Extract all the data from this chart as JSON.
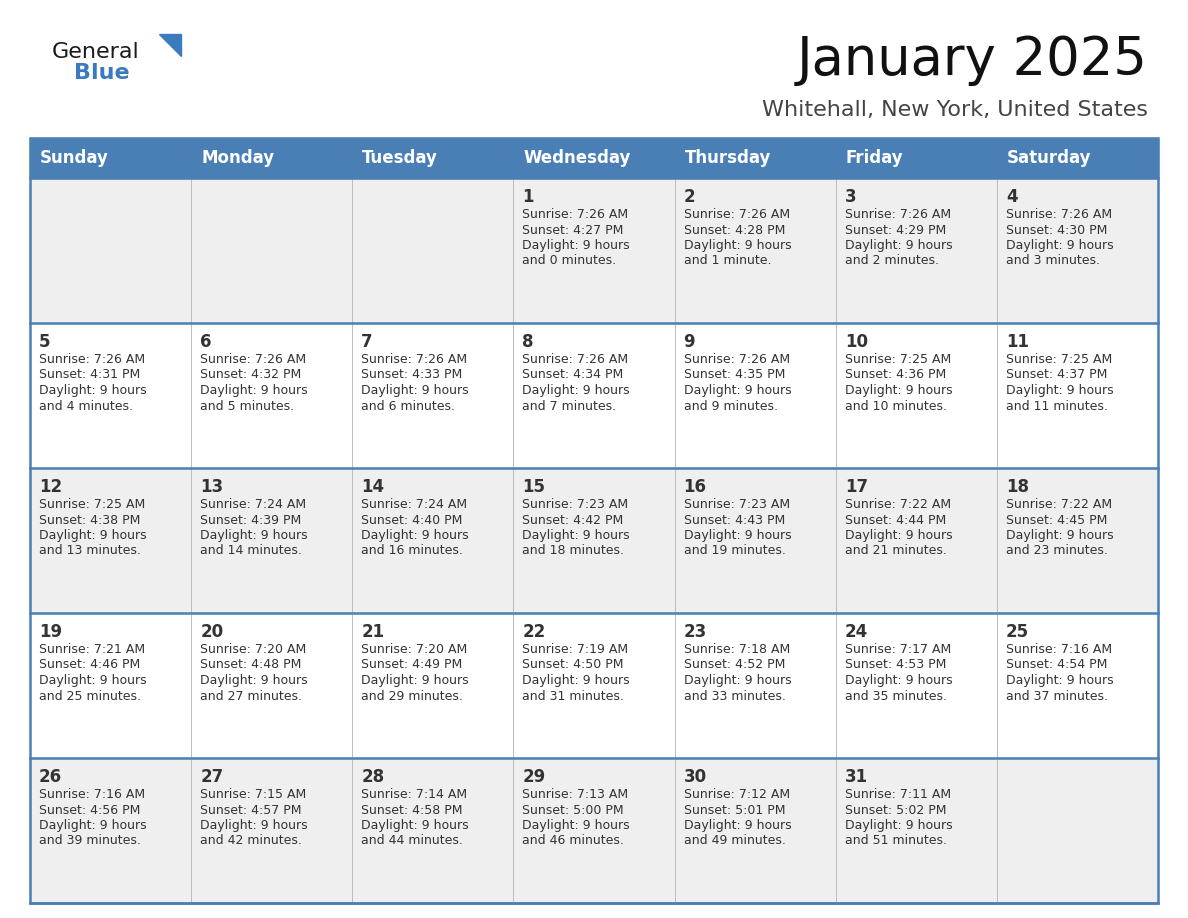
{
  "title": "January 2025",
  "subtitle": "Whitehall, New York, United States",
  "header_bg_color": "#4A7FB5",
  "header_text_color": "#FFFFFF",
  "day_names": [
    "Sunday",
    "Monday",
    "Tuesday",
    "Wednesday",
    "Thursday",
    "Friday",
    "Saturday"
  ],
  "row_colors": [
    "#EFEFEF",
    "#FFFFFF",
    "#EFEFEF",
    "#FFFFFF",
    "#EFEFEF"
  ],
  "border_color": "#4A7FB5",
  "cell_border_color": "#4A7FB5",
  "text_color": "#333333",
  "general_color": "#1a1a1a",
  "blue_color": "#3a7bbf",
  "calendar": [
    [
      null,
      null,
      null,
      {
        "day": 1,
        "sunrise": "7:26 AM",
        "sunset": "4:27 PM",
        "daylight_h": "9 hours",
        "daylight_m": "0 minutes"
      },
      {
        "day": 2,
        "sunrise": "7:26 AM",
        "sunset": "4:28 PM",
        "daylight_h": "9 hours",
        "daylight_m": "1 minute"
      },
      {
        "day": 3,
        "sunrise": "7:26 AM",
        "sunset": "4:29 PM",
        "daylight_h": "9 hours",
        "daylight_m": "2 minutes"
      },
      {
        "day": 4,
        "sunrise": "7:26 AM",
        "sunset": "4:30 PM",
        "daylight_h": "9 hours",
        "daylight_m": "3 minutes"
      }
    ],
    [
      {
        "day": 5,
        "sunrise": "7:26 AM",
        "sunset": "4:31 PM",
        "daylight_h": "9 hours",
        "daylight_m": "4 minutes"
      },
      {
        "day": 6,
        "sunrise": "7:26 AM",
        "sunset": "4:32 PM",
        "daylight_h": "9 hours",
        "daylight_m": "5 minutes"
      },
      {
        "day": 7,
        "sunrise": "7:26 AM",
        "sunset": "4:33 PM",
        "daylight_h": "9 hours",
        "daylight_m": "6 minutes"
      },
      {
        "day": 8,
        "sunrise": "7:26 AM",
        "sunset": "4:34 PM",
        "daylight_h": "9 hours",
        "daylight_m": "7 minutes"
      },
      {
        "day": 9,
        "sunrise": "7:26 AM",
        "sunset": "4:35 PM",
        "daylight_h": "9 hours",
        "daylight_m": "9 minutes"
      },
      {
        "day": 10,
        "sunrise": "7:25 AM",
        "sunset": "4:36 PM",
        "daylight_h": "9 hours",
        "daylight_m": "10 minutes"
      },
      {
        "day": 11,
        "sunrise": "7:25 AM",
        "sunset": "4:37 PM",
        "daylight_h": "9 hours",
        "daylight_m": "11 minutes"
      }
    ],
    [
      {
        "day": 12,
        "sunrise": "7:25 AM",
        "sunset": "4:38 PM",
        "daylight_h": "9 hours",
        "daylight_m": "13 minutes"
      },
      {
        "day": 13,
        "sunrise": "7:24 AM",
        "sunset": "4:39 PM",
        "daylight_h": "9 hours",
        "daylight_m": "14 minutes"
      },
      {
        "day": 14,
        "sunrise": "7:24 AM",
        "sunset": "4:40 PM",
        "daylight_h": "9 hours",
        "daylight_m": "16 minutes"
      },
      {
        "day": 15,
        "sunrise": "7:23 AM",
        "sunset": "4:42 PM",
        "daylight_h": "9 hours",
        "daylight_m": "18 minutes"
      },
      {
        "day": 16,
        "sunrise": "7:23 AM",
        "sunset": "4:43 PM",
        "daylight_h": "9 hours",
        "daylight_m": "19 minutes"
      },
      {
        "day": 17,
        "sunrise": "7:22 AM",
        "sunset": "4:44 PM",
        "daylight_h": "9 hours",
        "daylight_m": "21 minutes"
      },
      {
        "day": 18,
        "sunrise": "7:22 AM",
        "sunset": "4:45 PM",
        "daylight_h": "9 hours",
        "daylight_m": "23 minutes"
      }
    ],
    [
      {
        "day": 19,
        "sunrise": "7:21 AM",
        "sunset": "4:46 PM",
        "daylight_h": "9 hours",
        "daylight_m": "25 minutes"
      },
      {
        "day": 20,
        "sunrise": "7:20 AM",
        "sunset": "4:48 PM",
        "daylight_h": "9 hours",
        "daylight_m": "27 minutes"
      },
      {
        "day": 21,
        "sunrise": "7:20 AM",
        "sunset": "4:49 PM",
        "daylight_h": "9 hours",
        "daylight_m": "29 minutes"
      },
      {
        "day": 22,
        "sunrise": "7:19 AM",
        "sunset": "4:50 PM",
        "daylight_h": "9 hours",
        "daylight_m": "31 minutes"
      },
      {
        "day": 23,
        "sunrise": "7:18 AM",
        "sunset": "4:52 PM",
        "daylight_h": "9 hours",
        "daylight_m": "33 minutes"
      },
      {
        "day": 24,
        "sunrise": "7:17 AM",
        "sunset": "4:53 PM",
        "daylight_h": "9 hours",
        "daylight_m": "35 minutes"
      },
      {
        "day": 25,
        "sunrise": "7:16 AM",
        "sunset": "4:54 PM",
        "daylight_h": "9 hours",
        "daylight_m": "37 minutes"
      }
    ],
    [
      {
        "day": 26,
        "sunrise": "7:16 AM",
        "sunset": "4:56 PM",
        "daylight_h": "9 hours",
        "daylight_m": "39 minutes"
      },
      {
        "day": 27,
        "sunrise": "7:15 AM",
        "sunset": "4:57 PM",
        "daylight_h": "9 hours",
        "daylight_m": "42 minutes"
      },
      {
        "day": 28,
        "sunrise": "7:14 AM",
        "sunset": "4:58 PM",
        "daylight_h": "9 hours",
        "daylight_m": "44 minutes"
      },
      {
        "day": 29,
        "sunrise": "7:13 AM",
        "sunset": "5:00 PM",
        "daylight_h": "9 hours",
        "daylight_m": "46 minutes"
      },
      {
        "day": 30,
        "sunrise": "7:12 AM",
        "sunset": "5:01 PM",
        "daylight_h": "9 hours",
        "daylight_m": "49 minutes"
      },
      {
        "day": 31,
        "sunrise": "7:11 AM",
        "sunset": "5:02 PM",
        "daylight_h": "9 hours",
        "daylight_m": "51 minutes"
      },
      null
    ]
  ],
  "fig_width": 11.88,
  "fig_height": 9.18,
  "dpi": 100
}
